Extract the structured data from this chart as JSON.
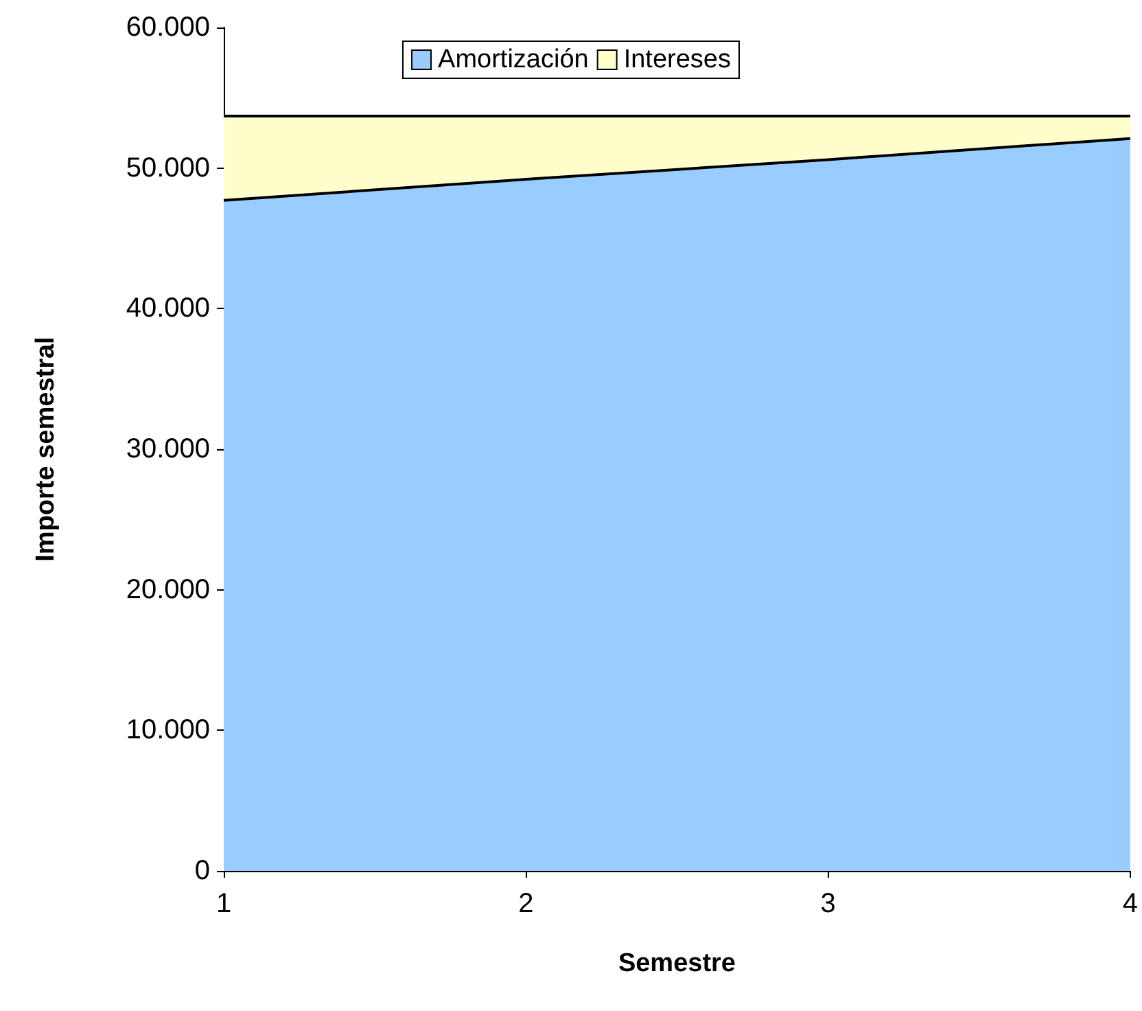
{
  "chart_data": {
    "type": "area",
    "stacked": true,
    "xlabel": "Semestre",
    "ylabel": "Importe semestral",
    "categories": [
      "1",
      "2",
      "3",
      "4"
    ],
    "series": [
      {
        "name": "Amortización",
        "color": "#99ccff",
        "values": [
          47700,
          49200,
          50600,
          52100
        ]
      },
      {
        "name": "Intereses",
        "color": "#ffffcc",
        "values": [
          6000,
          4500,
          3100,
          1600
        ]
      }
    ],
    "ylim": [
      0,
      60000
    ],
    "yticks": [
      0,
      {
        "value": 10000,
        "label": "10.000"
      },
      {
        "value": 20000,
        "label": "20.000"
      },
      {
        "value": 30000,
        "label": "30.000"
      },
      {
        "value": 40000,
        "label": "40.000"
      },
      {
        "value": 50000,
        "label": "50.000"
      },
      {
        "value": 60000,
        "label": "60.000"
      }
    ],
    "grid": false,
    "legend": "top",
    "marker": "none",
    "line_style": "solid"
  }
}
